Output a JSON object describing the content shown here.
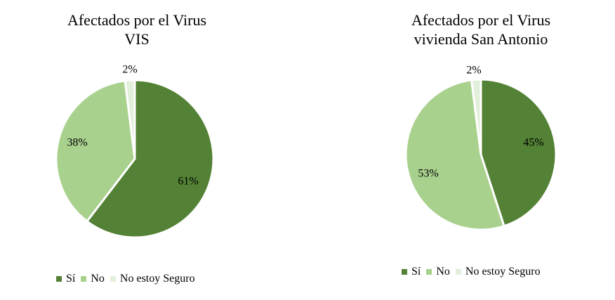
{
  "chart_data": [
    {
      "type": "pie",
      "title_lines": [
        "Afectados por el Virus",
        "VIS"
      ],
      "categories": [
        "Sí",
        "No",
        "No estoy Seguro"
      ],
      "values": [
        61,
        38,
        2
      ],
      "labels": [
        "61%",
        "38%",
        "2%"
      ],
      "colors": [
        "#538135",
        "#a9d18e",
        "#e2efda"
      ],
      "legend_position": "bottom"
    },
    {
      "type": "pie",
      "title_lines": [
        "Afectados por el Virus",
        "vivienda San Antonio"
      ],
      "categories": [
        "Sí",
        "No",
        "No estoy Seguro"
      ],
      "values": [
        45,
        53,
        2
      ],
      "labels": [
        "45%",
        "53%",
        "2%"
      ],
      "colors": [
        "#538135",
        "#a9d18e",
        "#e2efda"
      ],
      "legend_position": "bottom"
    }
  ]
}
